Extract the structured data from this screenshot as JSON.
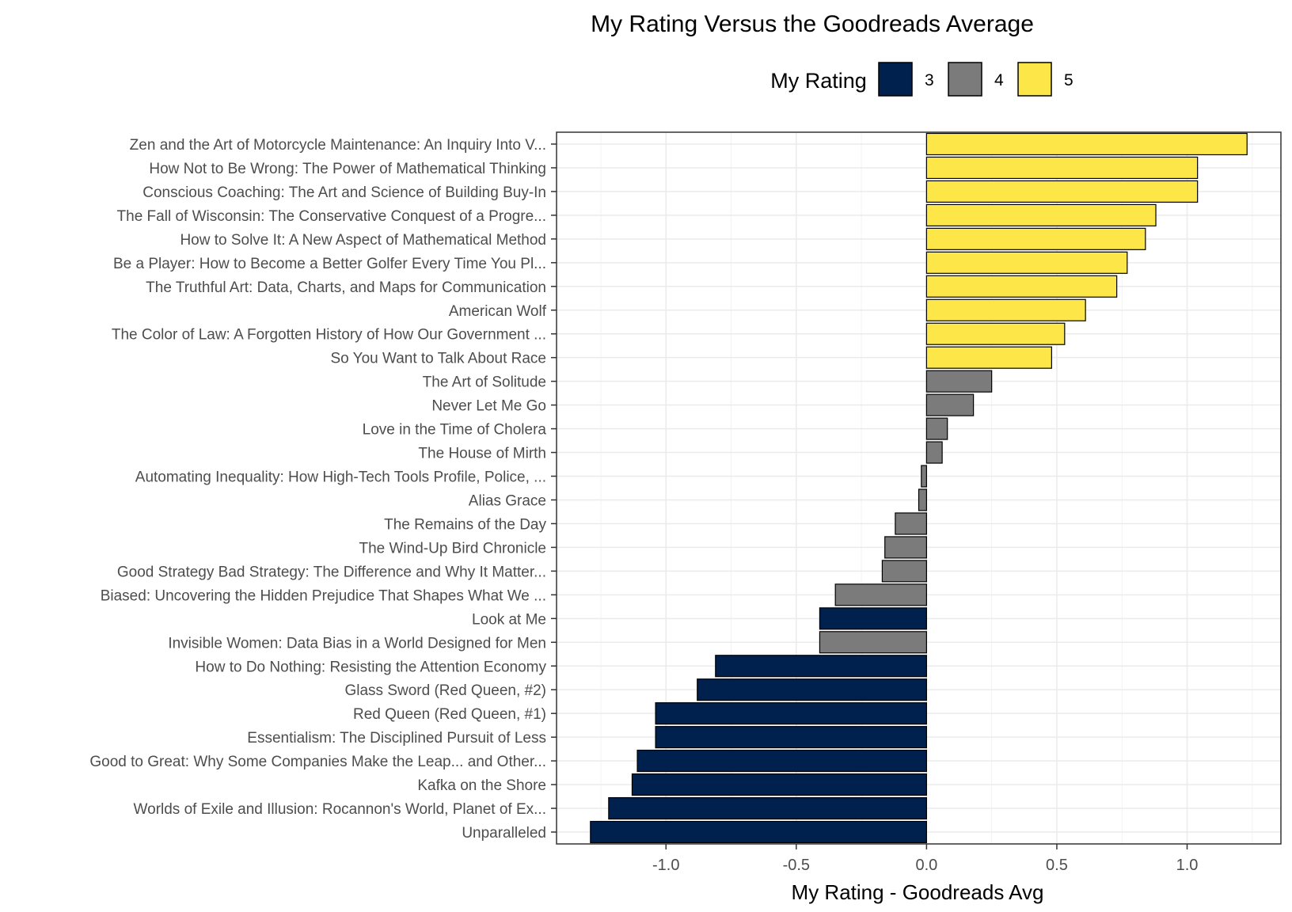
{
  "chart_data": {
    "type": "bar",
    "orientation": "horizontal",
    "title": "My Rating Versus the Goodreads Average",
    "xlabel": "My Rating - Goodreads Avg",
    "ylabel": "",
    "xlim": [
      -1.42,
      1.36
    ],
    "x_ticks": [
      "-1.0",
      "-0.5",
      "0.0",
      "0.5",
      "1.0"
    ],
    "grid": true,
    "legend": {
      "title": "My Rating",
      "position": "top",
      "entries": [
        {
          "label": "3",
          "color": "#00204e"
        },
        {
          "label": "4",
          "color": "#7b7b7b"
        },
        {
          "label": "5",
          "color": "#fde647"
        }
      ]
    },
    "categories": [
      "Zen and the Art of Motorcycle Maintenance: An Inquiry Into V...",
      "How Not to Be Wrong: The Power of Mathematical Thinking",
      "Conscious Coaching: The Art and Science of Building Buy-In",
      "The Fall of Wisconsin: The Conservative Conquest of a Progre...",
      "How to Solve It: A New Aspect of Mathematical Method",
      "Be a Player: How to Become a Better Golfer Every Time You Pl...",
      "The Truthful Art: Data, Charts, and Maps for Communication",
      "American Wolf",
      "The Color of Law: A Forgotten History of How Our Government ...",
      "So You Want to Talk About Race",
      "The Art of Solitude",
      "Never Let Me Go",
      "Love in the Time of Cholera",
      "The House of Mirth",
      "Automating Inequality: How High-Tech Tools Profile, Police, ...",
      "Alias Grace",
      "The Remains of the Day",
      "The Wind-Up Bird Chronicle",
      "Good Strategy Bad Strategy: The Difference and Why It Matter...",
      "Biased: Uncovering the Hidden Prejudice That Shapes What We ...",
      "Look at Me",
      "Invisible Women: Data Bias in a World Designed for Men",
      "How to Do Nothing: Resisting the Attention Economy",
      "Glass Sword (Red Queen, #2)",
      "Red Queen (Red Queen, #1)",
      "Essentialism: The Disciplined Pursuit of Less",
      "Good to Great: Why Some Companies Make the Leap... and Other...",
      "Kafka on the Shore",
      "Worlds of Exile and Illusion: Rocannon's World, Planet of Ex...",
      "Unparalleled"
    ],
    "values": [
      1.23,
      1.04,
      1.04,
      0.88,
      0.84,
      0.77,
      0.73,
      0.61,
      0.53,
      0.48,
      0.25,
      0.18,
      0.08,
      0.06,
      -0.02,
      -0.03,
      -0.12,
      -0.16,
      -0.17,
      -0.35,
      -0.41,
      -0.41,
      -0.81,
      -0.88,
      -1.04,
      -1.04,
      -1.11,
      -1.13,
      -1.22,
      -1.29
    ],
    "ratings": [
      "5",
      "5",
      "5",
      "5",
      "5",
      "5",
      "5",
      "5",
      "5",
      "5",
      "4",
      "4",
      "4",
      "4",
      "4",
      "4",
      "4",
      "4",
      "4",
      "4",
      "3",
      "4",
      "3",
      "3",
      "3",
      "3",
      "3",
      "3",
      "3",
      "3"
    ]
  }
}
